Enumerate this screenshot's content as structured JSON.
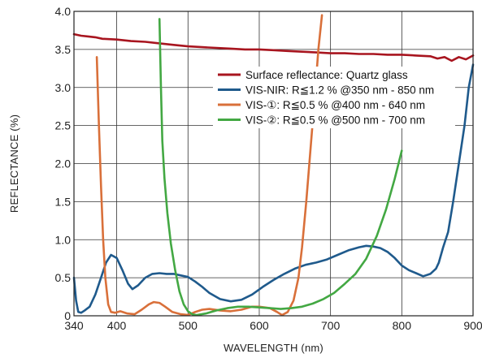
{
  "chart_data": {
    "type": "line",
    "xlabel": "WAVELENGTH (nm)",
    "ylabel": "REFLECTANCE (%)",
    "xlim": [
      340,
      900
    ],
    "ylim": [
      0,
      4.0
    ],
    "x_ticks": [
      340,
      400,
      500,
      600,
      700,
      800,
      900
    ],
    "x_tick_labels": [
      "340",
      "400",
      "500",
      "600",
      "700",
      "800",
      "900"
    ],
    "y_ticks": [
      0,
      0.5,
      1.0,
      1.5,
      2.0,
      2.5,
      3.0,
      3.5,
      4.0
    ],
    "y_tick_labels": [
      "0",
      "0.5",
      "1.0",
      "1.5",
      "2.0",
      "2.5",
      "3.0",
      "3.5",
      "4.0"
    ],
    "grid": true,
    "legend_position": "right",
    "series": [
      {
        "name": "Surface reflectance: Quartz glass",
        "color": "#a8151f",
        "points": [
          [
            340,
            3.7
          ],
          [
            350,
            3.68
          ],
          [
            360,
            3.67
          ],
          [
            370,
            3.66
          ],
          [
            380,
            3.64
          ],
          [
            400,
            3.63
          ],
          [
            420,
            3.61
          ],
          [
            440,
            3.6
          ],
          [
            460,
            3.58
          ],
          [
            480,
            3.56
          ],
          [
            500,
            3.54
          ],
          [
            520,
            3.53
          ],
          [
            540,
            3.52
          ],
          [
            560,
            3.51
          ],
          [
            580,
            3.5
          ],
          [
            600,
            3.5
          ],
          [
            620,
            3.49
          ],
          [
            640,
            3.48
          ],
          [
            660,
            3.47
          ],
          [
            680,
            3.46
          ],
          [
            700,
            3.45
          ],
          [
            720,
            3.45
          ],
          [
            740,
            3.44
          ],
          [
            760,
            3.44
          ],
          [
            780,
            3.43
          ],
          [
            800,
            3.43
          ],
          [
            820,
            3.42
          ],
          [
            840,
            3.41
          ],
          [
            850,
            3.38
          ],
          [
            860,
            3.4
          ],
          [
            870,
            3.35
          ],
          [
            880,
            3.4
          ],
          [
            890,
            3.37
          ],
          [
            900,
            3.42
          ]
        ]
      },
      {
        "name": "VIS-NIR: R≦1.2 % @350 nm - 850 nm",
        "color": "#1f5a8c",
        "points": [
          [
            340,
            0.5
          ],
          [
            343,
            0.2
          ],
          [
            346,
            0.05
          ],
          [
            350,
            0.04
          ],
          [
            355,
            0.07
          ],
          [
            362,
            0.12
          ],
          [
            370,
            0.28
          ],
          [
            378,
            0.5
          ],
          [
            385,
            0.7
          ],
          [
            392,
            0.8
          ],
          [
            400,
            0.76
          ],
          [
            408,
            0.6
          ],
          [
            416,
            0.42
          ],
          [
            422,
            0.35
          ],
          [
            430,
            0.4
          ],
          [
            440,
            0.5
          ],
          [
            450,
            0.55
          ],
          [
            460,
            0.56
          ],
          [
            470,
            0.55
          ],
          [
            480,
            0.55
          ],
          [
            490,
            0.53
          ],
          [
            500,
            0.51
          ],
          [
            510,
            0.45
          ],
          [
            520,
            0.38
          ],
          [
            530,
            0.3
          ],
          [
            545,
            0.22
          ],
          [
            560,
            0.19
          ],
          [
            575,
            0.21
          ],
          [
            590,
            0.28
          ],
          [
            605,
            0.38
          ],
          [
            620,
            0.47
          ],
          [
            635,
            0.55
          ],
          [
            650,
            0.62
          ],
          [
            665,
            0.67
          ],
          [
            680,
            0.7
          ],
          [
            695,
            0.74
          ],
          [
            710,
            0.8
          ],
          [
            725,
            0.86
          ],
          [
            740,
            0.9
          ],
          [
            750,
            0.92
          ],
          [
            760,
            0.91
          ],
          [
            770,
            0.89
          ],
          [
            780,
            0.84
          ],
          [
            790,
            0.76
          ],
          [
            800,
            0.66
          ],
          [
            810,
            0.6
          ],
          [
            820,
            0.56
          ],
          [
            830,
            0.52
          ],
          [
            840,
            0.55
          ],
          [
            848,
            0.62
          ],
          [
            852,
            0.7
          ],
          [
            858,
            0.9
          ],
          [
            865,
            1.1
          ],
          [
            872,
            1.5
          ],
          [
            880,
            2.0
          ],
          [
            888,
            2.5
          ],
          [
            894,
            3.0
          ],
          [
            900,
            3.3
          ]
        ]
      },
      {
        "name": "VIS-①: R≦0.5 % @400 nm - 640 nm",
        "color": "#d9703a",
        "points": [
          [
            372,
            3.4
          ],
          [
            375,
            2.5
          ],
          [
            378,
            1.7
          ],
          [
            381,
            1.0
          ],
          [
            384,
            0.5
          ],
          [
            388,
            0.15
          ],
          [
            392,
            0.05
          ],
          [
            398,
            0.04
          ],
          [
            405,
            0.06
          ],
          [
            415,
            0.03
          ],
          [
            425,
            0.02
          ],
          [
            435,
            0.08
          ],
          [
            445,
            0.15
          ],
          [
            452,
            0.18
          ],
          [
            460,
            0.17
          ],
          [
            468,
            0.12
          ],
          [
            478,
            0.05
          ],
          [
            490,
            0.02
          ],
          [
            500,
            0.01
          ],
          [
            510,
            0.05
          ],
          [
            520,
            0.08
          ],
          [
            530,
            0.09
          ],
          [
            545,
            0.07
          ],
          [
            560,
            0.06
          ],
          [
            575,
            0.08
          ],
          [
            590,
            0.12
          ],
          [
            600,
            0.12
          ],
          [
            615,
            0.1
          ],
          [
            625,
            0.05
          ],
          [
            632,
            0.01
          ],
          [
            640,
            0.05
          ],
          [
            648,
            0.2
          ],
          [
            655,
            0.5
          ],
          [
            660,
            0.9
          ],
          [
            666,
            1.5
          ],
          [
            672,
            2.2
          ],
          [
            678,
            2.9
          ],
          [
            683,
            3.5
          ],
          [
            688,
            3.95
          ]
        ]
      },
      {
        "name": "VIS-②: R≦0.5 % @500 nm - 700 nm",
        "color": "#43a843",
        "points": [
          [
            460,
            3.9
          ],
          [
            462,
            3.0
          ],
          [
            464,
            2.3
          ],
          [
            467,
            1.8
          ],
          [
            471,
            1.35
          ],
          [
            476,
            0.95
          ],
          [
            482,
            0.6
          ],
          [
            488,
            0.32
          ],
          [
            494,
            0.15
          ],
          [
            500,
            0.06
          ],
          [
            506,
            0.02
          ],
          [
            512,
            0.01
          ],
          [
            525,
            0.03
          ],
          [
            540,
            0.07
          ],
          [
            555,
            0.1
          ],
          [
            570,
            0.12
          ],
          [
            585,
            0.12
          ],
          [
            600,
            0.11
          ],
          [
            615,
            0.1
          ],
          [
            630,
            0.09
          ],
          [
            645,
            0.1
          ],
          [
            660,
            0.12
          ],
          [
            675,
            0.16
          ],
          [
            690,
            0.22
          ],
          [
            705,
            0.3
          ],
          [
            720,
            0.42
          ],
          [
            735,
            0.55
          ],
          [
            750,
            0.75
          ],
          [
            765,
            1.05
          ],
          [
            778,
            1.4
          ],
          [
            790,
            1.8
          ],
          [
            800,
            2.17
          ]
        ]
      }
    ]
  }
}
